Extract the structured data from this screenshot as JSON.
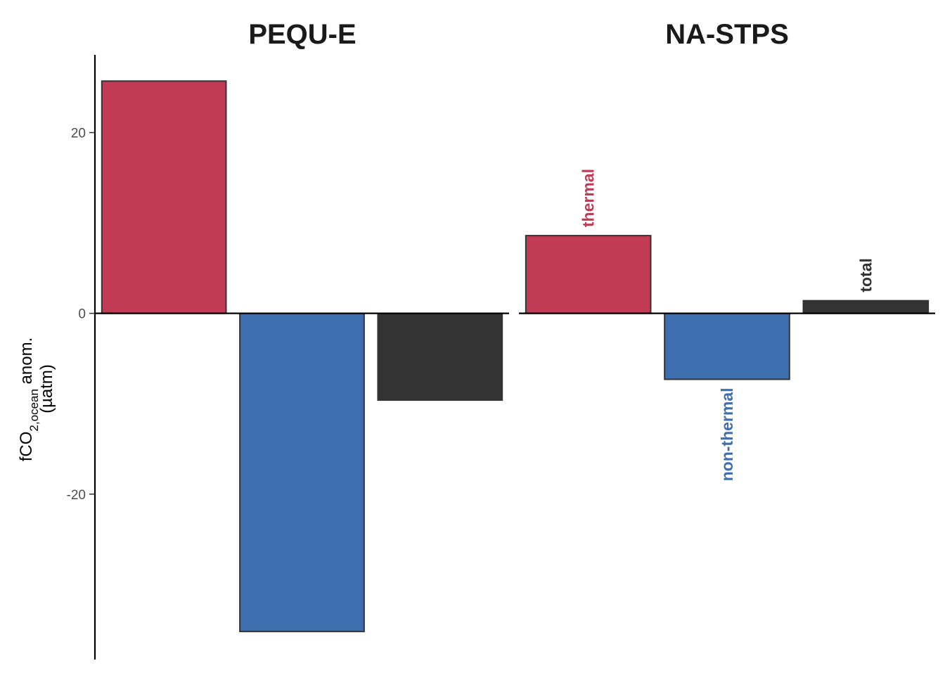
{
  "chart_data": {
    "type": "bar",
    "facets": [
      {
        "title": "PEQU-E",
        "series": [
          {
            "category": "thermal",
            "value": 25.7
          },
          {
            "category": "non-thermal",
            "value": -35.2
          },
          {
            "category": "total",
            "value": -9.6
          }
        ]
      },
      {
        "title": "NA-STPS",
        "series": [
          {
            "category": "thermal",
            "value": 8.6
          },
          {
            "category": "non-thermal",
            "value": -7.3
          },
          {
            "category": "total",
            "value": 1.4
          }
        ]
      }
    ],
    "category_labels": {
      "thermal": "thermal",
      "non-thermal": "non-thermal",
      "total": "total"
    },
    "colors": {
      "thermal": "#c13b55",
      "non-thermal": "#3e6eb0",
      "total": "#333333"
    },
    "ylabel": {
      "main": "fCO",
      "sub": "2,ocean",
      "rest": " anom.",
      "unit": "(µatm)"
    },
    "yticks": [
      20,
      0,
      -20
    ],
    "ytick_labels": [
      "20",
      "0",
      "-20"
    ],
    "ylim": [
      -38.3,
      28.6
    ],
    "bar_labels_shown_in": "NA-STPS",
    "grid": false,
    "legend": "none"
  }
}
